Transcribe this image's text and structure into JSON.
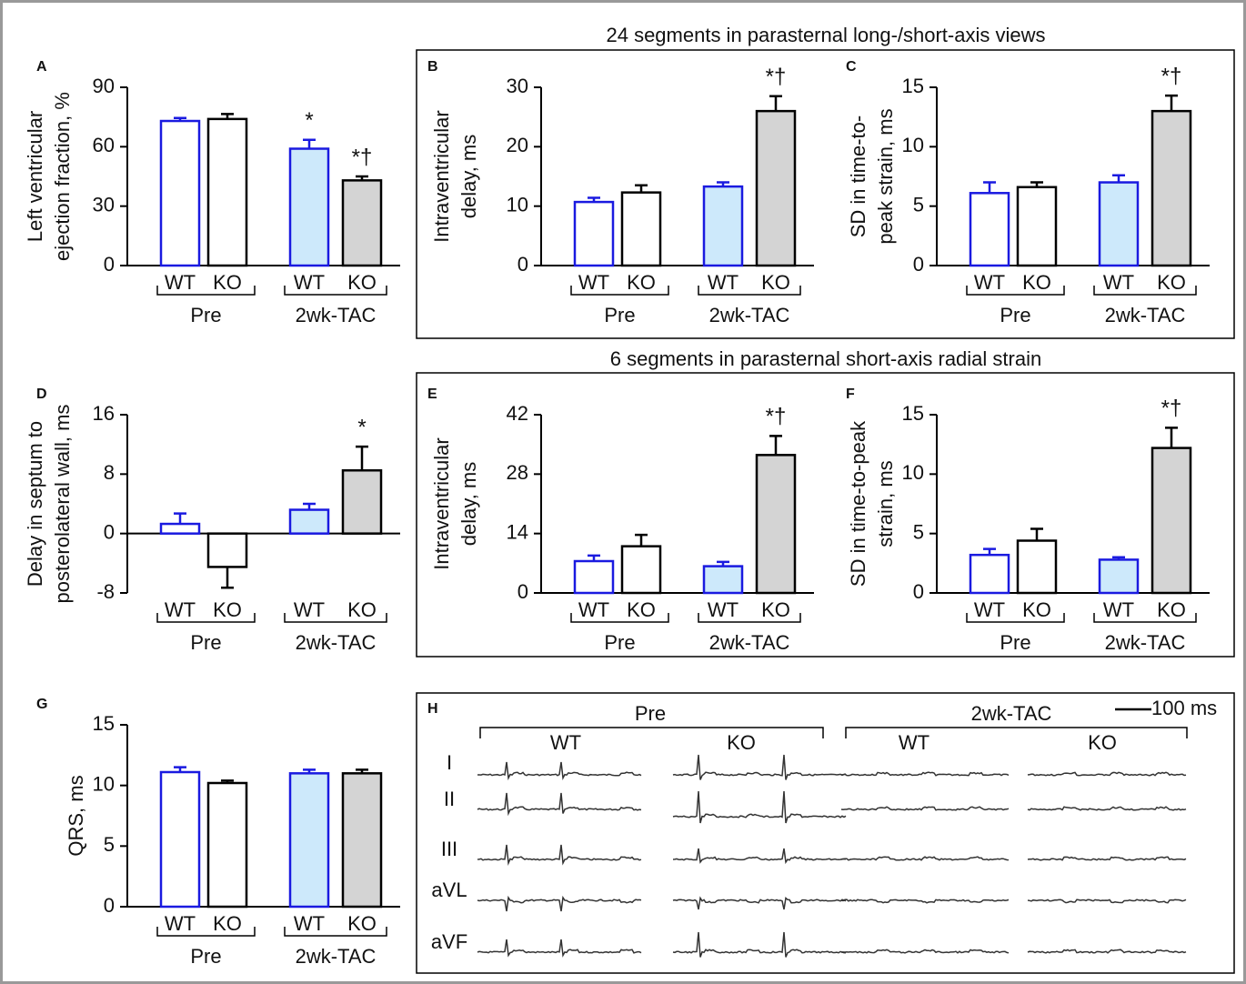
{
  "sections": [
    {
      "title": "24 segments in parasternal long-/short-axis views"
    },
    {
      "title": "6 segments in parasternal short-axis radial strain"
    }
  ],
  "bar_style": {
    "edges": [
      "#1a1ae0",
      "#000000",
      "#1a1ae0",
      "#000000"
    ],
    "fills": [
      "#ffffff",
      "#ffffff",
      "#cde9fb",
      "#d4d4d4"
    ]
  },
  "chart_data": [
    {
      "type": "bar",
      "letter": "A",
      "ylabel": [
        "Left ventricular",
        "ejection fraction, %"
      ],
      "categories": [
        "WT",
        "KO",
        "WT",
        "KO"
      ],
      "groups": [
        "Pre",
        "2wk-TAC"
      ],
      "values": [
        73,
        74,
        59,
        43
      ],
      "errors": [
        1.5,
        2.5,
        4.5,
        2
      ],
      "annotations": [
        null,
        null,
        "*",
        "*†"
      ],
      "ylim": [
        0,
        90
      ],
      "yticks": [
        0,
        30,
        60,
        90
      ]
    },
    {
      "type": "bar",
      "letter": "B",
      "ylabel": [
        "Intraventricular",
        "delay, ms"
      ],
      "categories": [
        "WT",
        "KO",
        "WT",
        "KO"
      ],
      "groups": [
        "Pre",
        "2wk-TAC"
      ],
      "values": [
        10.7,
        12.3,
        13.3,
        26
      ],
      "errors": [
        0.7,
        1.2,
        0.7,
        2.5
      ],
      "annotations": [
        null,
        null,
        null,
        "*†"
      ],
      "ylim": [
        0,
        30
      ],
      "yticks": [
        0,
        10,
        20,
        30
      ]
    },
    {
      "type": "bar",
      "letter": "C",
      "ylabel": [
        "SD in time-to-",
        "peak strain, ms"
      ],
      "categories": [
        "WT",
        "KO",
        "WT",
        "KO"
      ],
      "groups": [
        "Pre",
        "2wk-TAC"
      ],
      "values": [
        6.1,
        6.6,
        7.0,
        13.0
      ],
      "errors": [
        0.9,
        0.4,
        0.6,
        1.3
      ],
      "annotations": [
        null,
        null,
        null,
        "*†"
      ],
      "ylim": [
        0,
        15
      ],
      "yticks": [
        0,
        5,
        10,
        15
      ]
    },
    {
      "type": "bar",
      "letter": "D",
      "ylabel": [
        "Delay in septum to",
        "posterolateral wall, ms"
      ],
      "categories": [
        "WT",
        "KO",
        "WT",
        "KO"
      ],
      "groups": [
        "Pre",
        "2wk-TAC"
      ],
      "values": [
        1.3,
        -4.5,
        3.2,
        8.5
      ],
      "errors": [
        1.4,
        2.8,
        0.8,
        3.2
      ],
      "annotations": [
        null,
        null,
        null,
        "*"
      ],
      "ylim": [
        -8,
        16
      ],
      "yticks": [
        -8,
        0,
        8,
        16
      ]
    },
    {
      "type": "bar",
      "letter": "E",
      "ylabel": [
        "Intraventricular",
        "delay, ms"
      ],
      "categories": [
        "WT",
        "KO",
        "WT",
        "KO"
      ],
      "groups": [
        "Pre",
        "2wk-TAC"
      ],
      "values": [
        7.5,
        11,
        6.3,
        32.5
      ],
      "errors": [
        1.3,
        2.7,
        1.0,
        4.5
      ],
      "annotations": [
        null,
        null,
        null,
        "*†"
      ],
      "ylim": [
        0,
        42
      ],
      "yticks": [
        0,
        14,
        28,
        42
      ]
    },
    {
      "type": "bar",
      "letter": "F",
      "ylabel": [
        "SD in time-to-peak",
        "strain, ms"
      ],
      "categories": [
        "WT",
        "KO",
        "WT",
        "KO"
      ],
      "groups": [
        "Pre",
        "2wk-TAC"
      ],
      "values": [
        3.2,
        4.4,
        2.8,
        12.2
      ],
      "errors": [
        0.5,
        1.0,
        0.2,
        1.7
      ],
      "annotations": [
        null,
        null,
        null,
        "*†"
      ],
      "ylim": [
        0,
        15
      ],
      "yticks": [
        0,
        5,
        10,
        15
      ]
    },
    {
      "type": "bar",
      "letter": "G",
      "ylabel": [
        "QRS, ms"
      ],
      "categories": [
        "WT",
        "KO",
        "WT",
        "KO"
      ],
      "groups": [
        "Pre",
        "2wk-TAC"
      ],
      "values": [
        11.1,
        10.2,
        11.0,
        11.0
      ],
      "errors": [
        0.4,
        0.2,
        0.3,
        0.3
      ],
      "annotations": [
        null,
        null,
        null,
        null
      ],
      "ylim": [
        0,
        15
      ],
      "yticks": [
        0,
        5,
        10,
        15
      ]
    }
  ],
  "ecg": {
    "letter": "H",
    "scale_label": "100 ms",
    "groups": [
      "Pre",
      "2wk-TAC"
    ],
    "genotypes": [
      "WT",
      "KO",
      "WT",
      "KO"
    ],
    "leads": [
      "I",
      "II",
      "III",
      "aVL",
      "aVF"
    ]
  }
}
